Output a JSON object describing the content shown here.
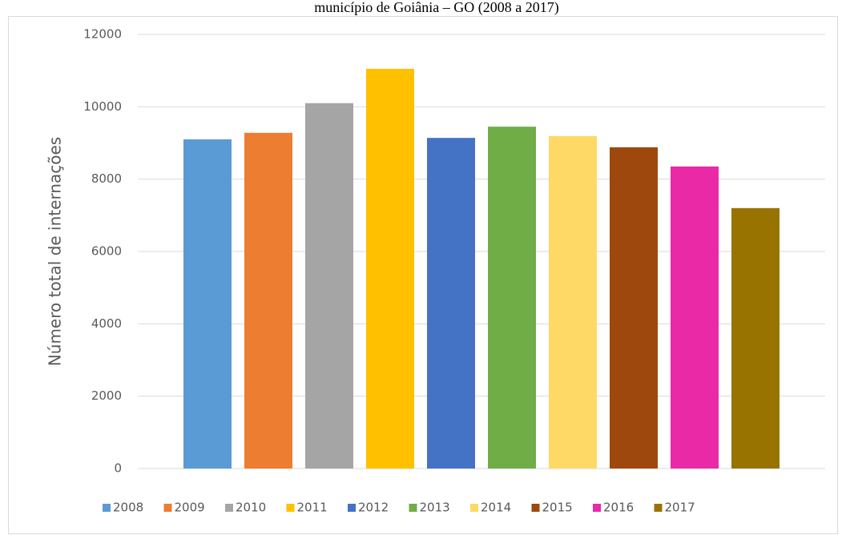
{
  "chart_data": {
    "type": "bar",
    "title": "município de Goiânia – GO (2008 a 2017)",
    "y_label": "Número  total de internações",
    "series": [
      {
        "name": "2008",
        "color": "#5b9bd5",
        "values": [
          9100
        ]
      },
      {
        "name": "2009",
        "color": "#ed7d31",
        "values": [
          9280
        ]
      },
      {
        "name": "2010",
        "color": "#a5a5a5",
        "values": [
          10100
        ]
      },
      {
        "name": "2011",
        "color": "#ffc000",
        "values": [
          11050
        ]
      },
      {
        "name": "2012",
        "color": "#4472c4",
        "values": [
          9140
        ]
      },
      {
        "name": "2013",
        "color": "#70ad47",
        "values": [
          9450
        ]
      },
      {
        "name": "2014",
        "color": "#ffd966",
        "values": [
          9190
        ]
      },
      {
        "name": "2015",
        "color": "#9e480e",
        "values": [
          8880
        ]
      },
      {
        "name": "2016",
        "color": "#e929a6",
        "values": [
          8350
        ]
      },
      {
        "name": "2017",
        "color": "#997300",
        "values": [
          7200
        ]
      }
    ],
    "ylim": [
      0,
      12000
    ],
    "yticks": [
      0,
      2000,
      4000,
      6000,
      8000,
      10000,
      12000
    ],
    "grid": true,
    "legend": "bottom"
  }
}
